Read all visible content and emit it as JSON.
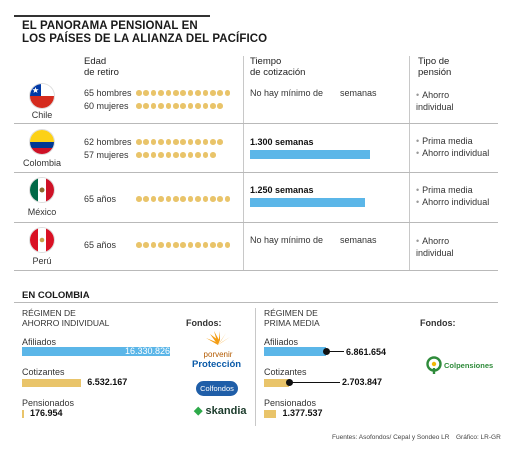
{
  "title": "EL PANORAMA PENSIONAL EN\nLOS PAÍSES DE LA ALIANZA DEL PACÍFICO",
  "headers": {
    "edad": "Edad\nde retiro",
    "tiempo": "Tiempo\nde cotización",
    "tipo": "Tipo de\npensión"
  },
  "countries": [
    {
      "name": "Chile",
      "ages": [
        {
          "label": "65 hombres",
          "value": 65
        },
        {
          "label": "60 mujeres",
          "value": 60
        }
      ],
      "contribution": {
        "text": "No hay mínimo de",
        "unit": "semanas",
        "weeks": null
      },
      "types": [
        "Ahorro individual"
      ]
    },
    {
      "name": "Colombia",
      "ages": [
        {
          "label": "62 hombres",
          "value": 62
        },
        {
          "label": "57 mujeres",
          "value": 57
        }
      ],
      "contribution": {
        "text": "1.300 semanas",
        "weeks": 1300
      },
      "types": [
        "Prima media",
        "Ahorro individual"
      ]
    },
    {
      "name": "México",
      "ages": [
        {
          "label": "65 años",
          "value": 65
        }
      ],
      "contribution": {
        "text": "1.250 semanas",
        "weeks": 1250
      },
      "types": [
        "Prima media",
        "Ahorro individual"
      ]
    },
    {
      "name": "Perú",
      "ages": [
        {
          "label": "65 años",
          "value": 65
        }
      ],
      "contribution": {
        "text": "No hay mínimo de",
        "unit": "semanas",
        "weeks": null
      },
      "types": [
        "Ahorro individual"
      ]
    }
  ],
  "colombia": {
    "title": "EN COLOMBIA",
    "fondos_label": "Fondos:",
    "individual": {
      "title": "RÉGIMEN DE\nAHORRO INDIVIDUAL",
      "rows": [
        {
          "label": "Afiliados",
          "value_text": "16.330.826",
          "value": 16330826
        },
        {
          "label": "Cotizantes",
          "value_text": "6.532.167",
          "value": 6532167
        },
        {
          "label": "Pensionados",
          "value_text": "176.954",
          "value": 176954
        }
      ],
      "funds": [
        "porvenir",
        "Protección",
        "Colfondos",
        "skandia"
      ]
    },
    "media": {
      "title": "RÉGIMEN DE\nPRIMA MEDIA",
      "rows": [
        {
          "label": "Afiliados",
          "value_text": "6.861.654",
          "value": 6861654
        },
        {
          "label": "Cotizantes",
          "value_text": "2.703.847",
          "value": 2703847
        },
        {
          "label": "Pensionados",
          "value_text": "1.377.537",
          "value": 1377537
        }
      ],
      "funds": [
        "Colpensiones"
      ]
    }
  },
  "footer": {
    "sources": "Fuentes: Asofondos/ Cepal y Sondeo LR",
    "credit": "Gráfico: LR-GR"
  },
  "chart_data": [
    {
      "type": "table",
      "title": "EL PANORAMA PENSIONAL EN LOS PAÍSES DE LA ALIANZA DEL PACÍFICO",
      "columns": [
        "Edad de retiro",
        "Tiempo de cotización",
        "Tipo de pensión"
      ],
      "rows": [
        {
          "country": "Chile",
          "retirement_age": {
            "hombres": 65,
            "mujeres": 60
          },
          "contribution_weeks": null,
          "pension_types": [
            "Ahorro individual"
          ]
        },
        {
          "country": "Colombia",
          "retirement_age": {
            "hombres": 62,
            "mujeres": 57
          },
          "contribution_weeks": 1300,
          "pension_types": [
            "Prima media",
            "Ahorro individual"
          ]
        },
        {
          "country": "México",
          "retirement_age": {
            "general": 65
          },
          "contribution_weeks": 1250,
          "pension_types": [
            "Prima media",
            "Ahorro individual"
          ]
        },
        {
          "country": "Perú",
          "retirement_age": {
            "general": 65
          },
          "contribution_weeks": null,
          "pension_types": [
            "Ahorro individual"
          ]
        }
      ]
    },
    {
      "type": "bar",
      "title": "RÉGIMEN DE AHORRO INDIVIDUAL",
      "categories": [
        "Afiliados",
        "Cotizantes",
        "Pensionados"
      ],
      "values": [
        16330826,
        6532167,
        176954
      ]
    },
    {
      "type": "bar",
      "title": "RÉGIMEN DE PRIMA MEDIA",
      "categories": [
        "Afiliados",
        "Cotizantes",
        "Pensionados"
      ],
      "values": [
        6861654,
        2703847,
        1377537
      ]
    }
  ]
}
